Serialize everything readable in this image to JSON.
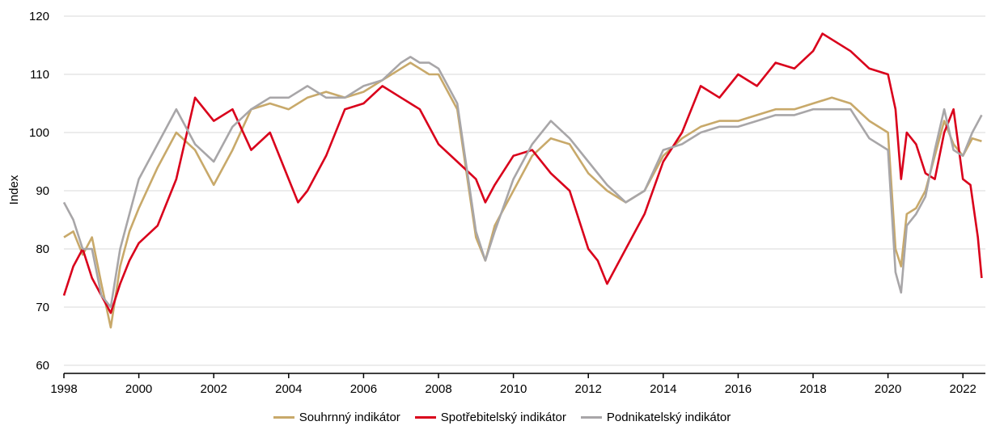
{
  "chart_data": {
    "type": "line",
    "title": "",
    "xlabel": "",
    "ylabel": "Index",
    "xlim": [
      1998.0,
      2022.6
    ],
    "ylim": [
      60,
      120
    ],
    "yticks": [
      60,
      70,
      80,
      90,
      100,
      110,
      120
    ],
    "xticks": [
      "1998",
      "2000",
      "2002",
      "2004",
      "2006",
      "2008",
      "2010",
      "2012",
      "2014",
      "2016",
      "2018",
      "2020",
      "2022"
    ],
    "grid": "horizontal",
    "legend_position": "bottom",
    "colors": {
      "souhrnny": "#c8a96a",
      "spotrebitelsky": "#d9001b",
      "podnikatelsky": "#a8a6a8"
    },
    "series": [
      {
        "name": "Souhrnný indikátor",
        "key": "souhrnny",
        "x": [
          1998.0,
          1998.25,
          1998.5,
          1998.75,
          1999.0,
          1999.25,
          1999.5,
          1999.75,
          2000.0,
          2000.5,
          2001.0,
          2001.5,
          2002.0,
          2002.5,
          2003.0,
          2003.5,
          2004.0,
          2004.5,
          2005.0,
          2005.5,
          2006.0,
          2006.5,
          2007.0,
          2007.25,
          2007.5,
          2007.75,
          2008.0,
          2008.5,
          2009.0,
          2009.25,
          2009.5,
          2010.0,
          2010.5,
          2011.0,
          2011.5,
          2012.0,
          2012.5,
          2013.0,
          2013.5,
          2014.0,
          2014.5,
          2015.0,
          2015.5,
          2016.0,
          2016.5,
          2017.0,
          2017.5,
          2018.0,
          2018.5,
          2019.0,
          2019.5,
          2020.0,
          2020.2,
          2020.35,
          2020.5,
          2020.75,
          2021.0,
          2021.25,
          2021.5,
          2021.75,
          2022.0,
          2022.25,
          2022.5
        ],
        "values": [
          82,
          83,
          79,
          82,
          74,
          66.5,
          77,
          83,
          87,
          94,
          100,
          97,
          91,
          97,
          104,
          105,
          104,
          106,
          107,
          106,
          107,
          109,
          111,
          112,
          111,
          110,
          110,
          104,
          82,
          78,
          84,
          90,
          96,
          99,
          98,
          93,
          90,
          88,
          90,
          96,
          99,
          101,
          102,
          102,
          103,
          104,
          104,
          105,
          106,
          105,
          102,
          100,
          80,
          77,
          86,
          87,
          90,
          96,
          102,
          98,
          96,
          99,
          98.5
        ]
      },
      {
        "name": "Spotřebitelský indikátor",
        "key": "spotrebitelsky",
        "x": [
          1998.0,
          1998.25,
          1998.5,
          1998.75,
          1999.0,
          1999.25,
          1999.5,
          1999.75,
          2000.0,
          2000.5,
          2001.0,
          2001.5,
          2002.0,
          2002.5,
          2003.0,
          2003.5,
          2004.0,
          2004.25,
          2004.5,
          2005.0,
          2005.5,
          2006.0,
          2006.5,
          2007.0,
          2007.5,
          2008.0,
          2008.5,
          2009.0,
          2009.25,
          2009.5,
          2010.0,
          2010.5,
          2011.0,
          2011.5,
          2012.0,
          2012.25,
          2012.5,
          2013.0,
          2013.5,
          2014.0,
          2014.5,
          2015.0,
          2015.5,
          2016.0,
          2016.5,
          2017.0,
          2017.5,
          2018.0,
          2018.25,
          2018.5,
          2019.0,
          2019.5,
          2020.0,
          2020.2,
          2020.35,
          2020.5,
          2020.75,
          2021.0,
          2021.25,
          2021.5,
          2021.75,
          2022.0,
          2022.2,
          2022.4,
          2022.5
        ],
        "values": [
          72,
          77,
          80,
          75,
          72,
          69,
          74,
          78,
          81,
          84,
          92,
          106,
          102,
          104,
          97,
          100,
          92,
          88,
          90,
          96,
          104,
          105,
          108,
          106,
          104,
          98,
          95,
          92,
          88,
          91,
          96,
          97,
          93,
          90,
          80,
          78,
          74,
          80,
          86,
          95,
          100,
          108,
          106,
          110,
          108,
          112,
          111,
          114,
          117,
          116,
          114,
          111,
          110,
          104,
          92,
          100,
          98,
          93,
          92,
          100,
          104,
          92,
          91,
          82,
          75
        ]
      },
      {
        "name": "Podnikatelský indikátor",
        "key": "podnikatelsky",
        "x": [
          1998.0,
          1998.25,
          1998.5,
          1998.75,
          1999.0,
          1999.25,
          1999.5,
          1999.75,
          2000.0,
          2000.5,
          2001.0,
          2001.5,
          2002.0,
          2002.5,
          2003.0,
          2003.5,
          2004.0,
          2004.5,
          2005.0,
          2005.5,
          2006.0,
          2006.5,
          2007.0,
          2007.25,
          2007.5,
          2007.75,
          2008.0,
          2008.5,
          2009.0,
          2009.25,
          2009.5,
          2010.0,
          2010.5,
          2011.0,
          2011.5,
          2012.0,
          2012.5,
          2013.0,
          2013.5,
          2014.0,
          2014.5,
          2015.0,
          2015.5,
          2016.0,
          2016.5,
          2017.0,
          2017.5,
          2018.0,
          2018.5,
          2019.0,
          2019.5,
          2020.0,
          2020.2,
          2020.35,
          2020.5,
          2020.75,
          2021.0,
          2021.25,
          2021.5,
          2021.75,
          2022.0,
          2022.25,
          2022.5
        ],
        "values": [
          88,
          85,
          80,
          80,
          72,
          70,
          80,
          86,
          92,
          98,
          104,
          98,
          95,
          101,
          104,
          106,
          106,
          108,
          106,
          106,
          108,
          109,
          112,
          113,
          112,
          112,
          111,
          105,
          83,
          78,
          83,
          92,
          98,
          102,
          99,
          95,
          91,
          88,
          90,
          97,
          98,
          100,
          101,
          101,
          102,
          103,
          103,
          104,
          104,
          104,
          99,
          97,
          76,
          72.5,
          84,
          86,
          89,
          97,
          104,
          97,
          96,
          100,
          103
        ]
      }
    ]
  }
}
